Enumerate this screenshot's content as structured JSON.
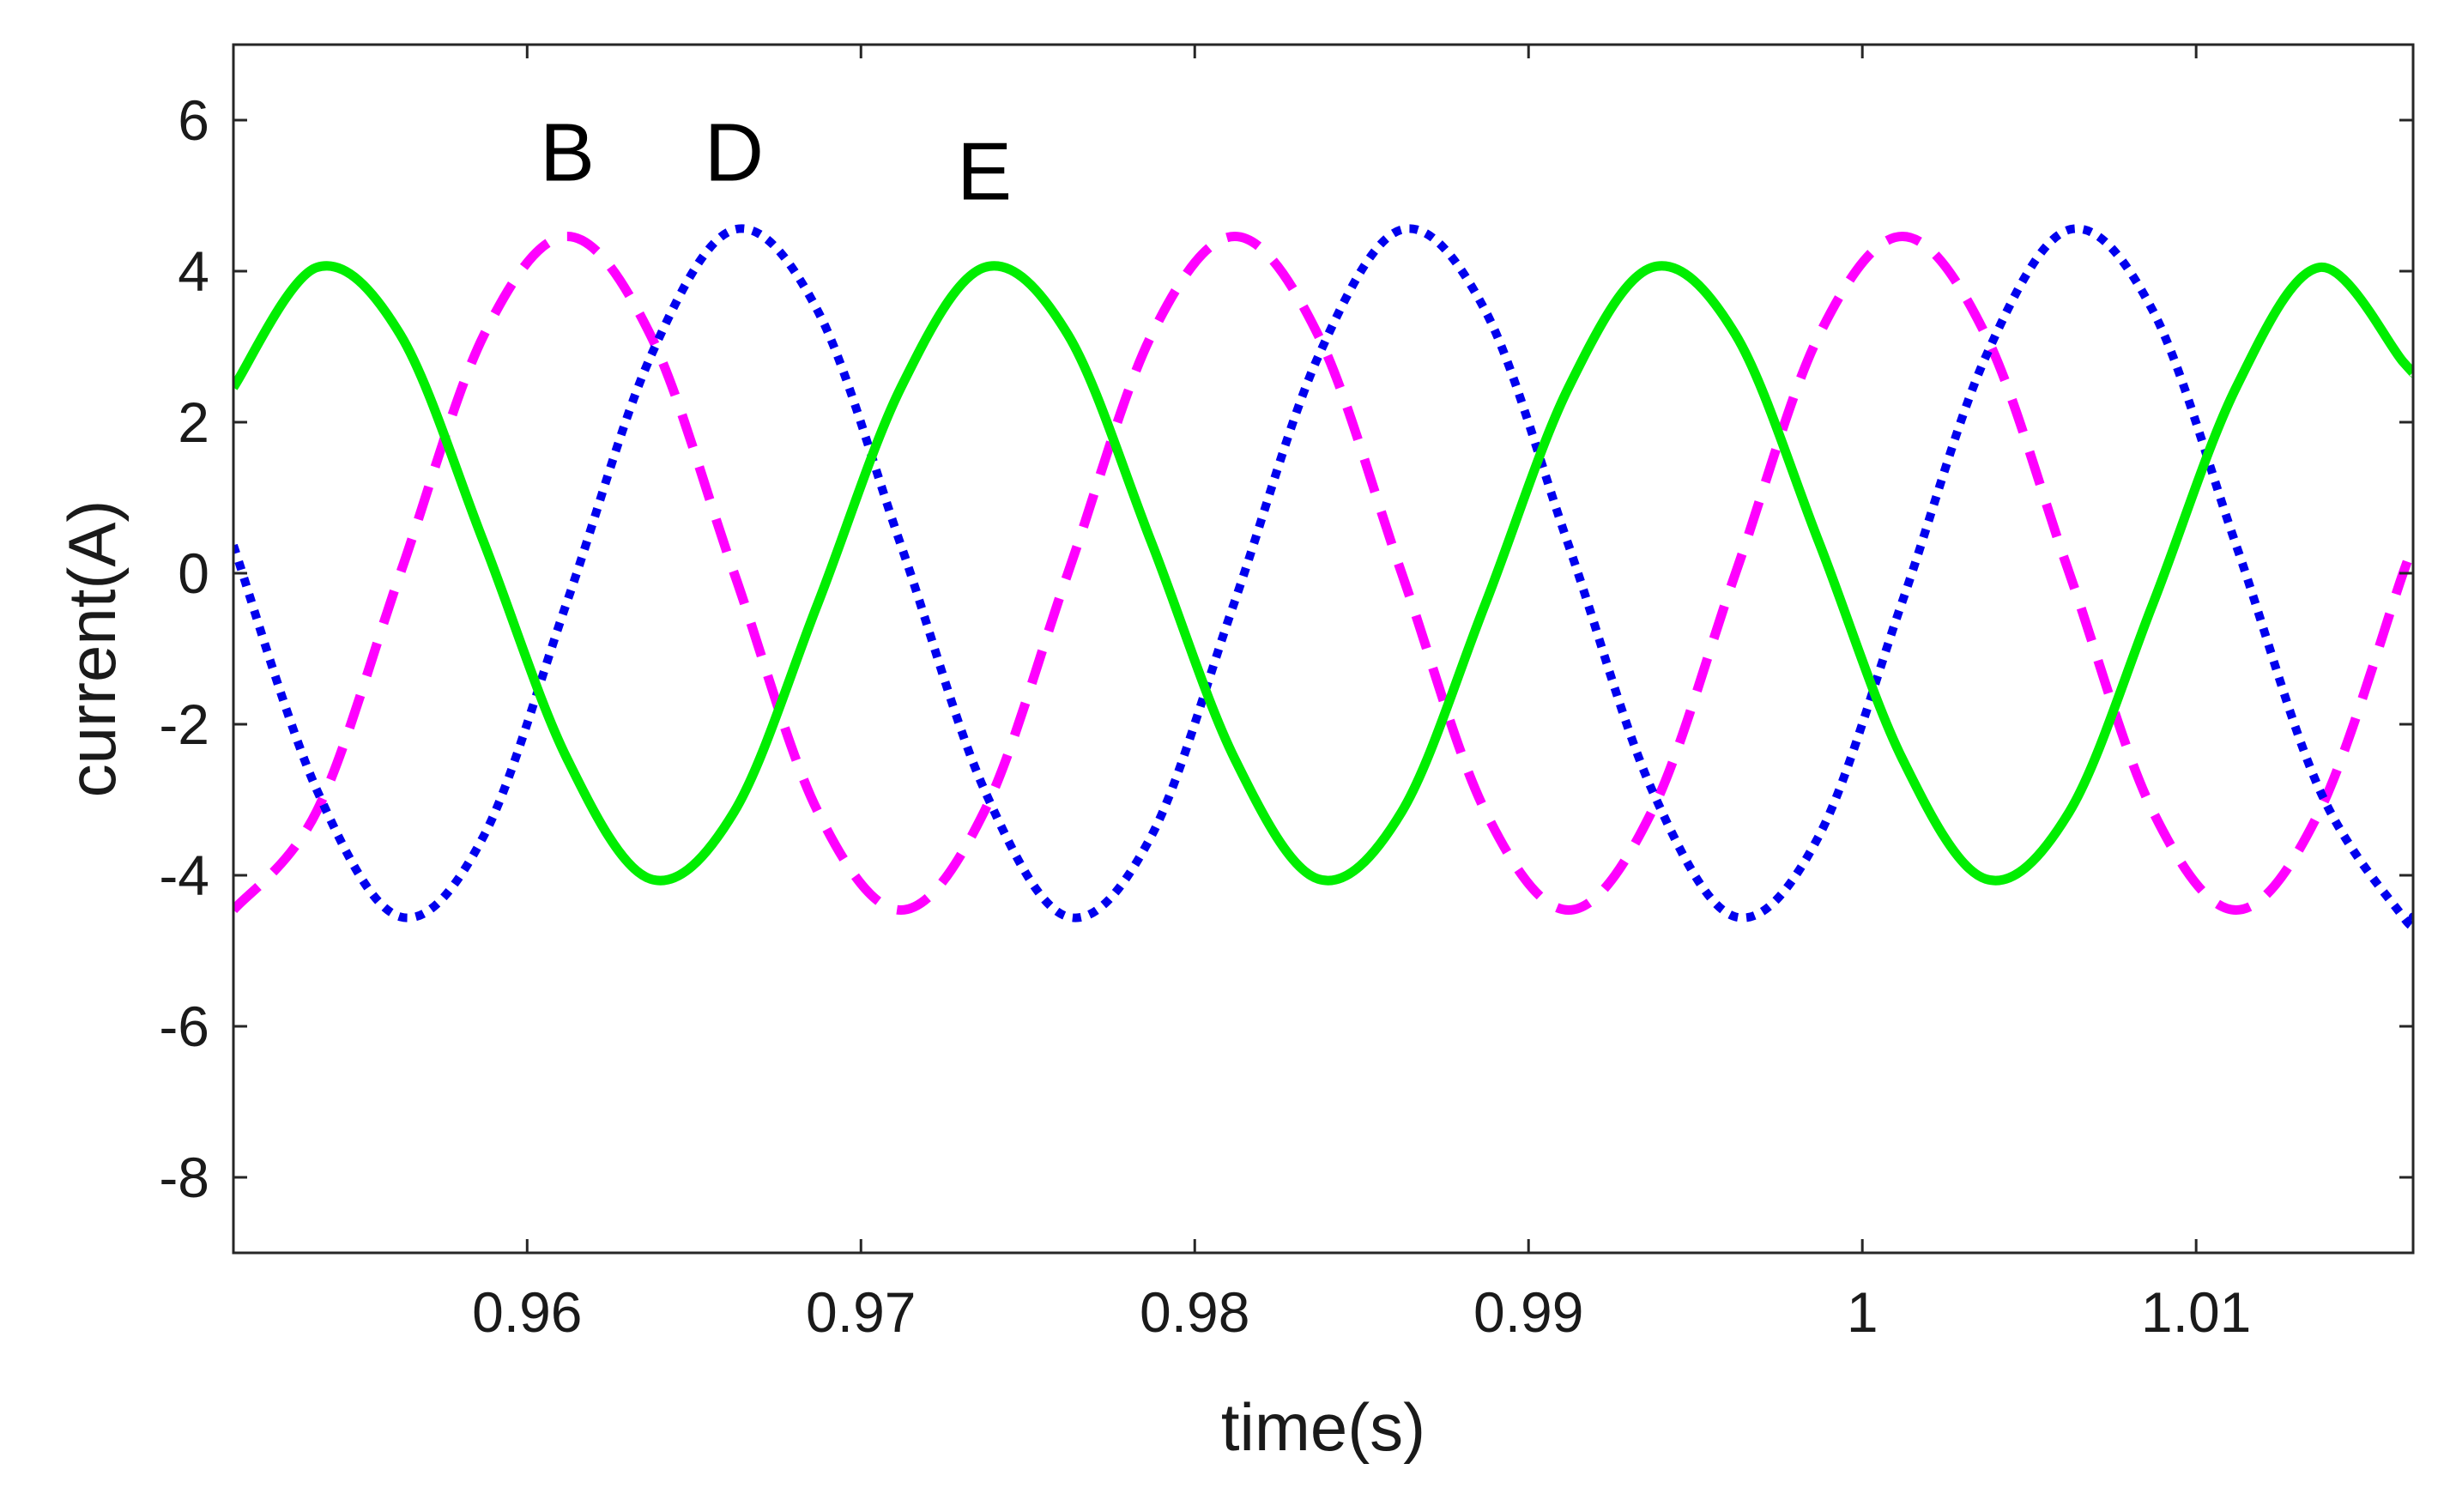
{
  "chart_data": {
    "type": "line",
    "title": "",
    "xlabel": "time(s)",
    "ylabel": "current(A)",
    "xlim": [
      0.9512,
      1.0165
    ],
    "ylim": [
      -9,
      7
    ],
    "grid": false,
    "xticks": [
      0.96,
      0.97,
      0.98,
      0.99,
      1,
      1.01
    ],
    "xtick_labels": [
      "0.96",
      "0.97",
      "0.98",
      "0.99",
      "1",
      "1.01"
    ],
    "yticks": [
      6,
      4,
      2,
      0,
      -2,
      -4,
      -6,
      -8
    ],
    "ytick_labels": [
      "6",
      "4",
      "2",
      "0",
      "-2",
      "-4",
      "-6",
      "-8"
    ],
    "x": [
      0.9512,
      0.9537,
      0.9562,
      0.9587,
      0.9612,
      0.9637,
      0.9662,
      0.9687,
      0.9712,
      0.9737,
      0.9762,
      0.9787,
      0.9812,
      0.9837,
      0.9862,
      0.9887,
      0.9912,
      0.9937,
      0.9962,
      0.9987,
      1.0012,
      1.0037,
      1.0062,
      1.0087,
      1.0112,
      1.0137,
      1.0162,
      1.0165
    ],
    "series": [
      {
        "name": "B",
        "color": "#ff00ff",
        "style": "dashed",
        "values": [
          -4.46,
          -3.15,
          0.0,
          3.15,
          4.46,
          3.15,
          0.0,
          -3.15,
          -4.46,
          -3.15,
          0.0,
          3.15,
          4.46,
          3.15,
          0.0,
          -3.15,
          -4.46,
          -3.15,
          0.0,
          3.15,
          4.46,
          3.15,
          0.0,
          -3.15,
          -4.46,
          -3.15,
          0.0,
          0.35
        ]
      },
      {
        "name": "D",
        "color": "#0000ee",
        "style": "dotted",
        "values": [
          0.37,
          -2.87,
          -4.55,
          -3.48,
          -0.37,
          2.87,
          4.55,
          3.48,
          0.37,
          -2.87,
          -4.55,
          -3.48,
          -0.37,
          2.87,
          4.55,
          3.48,
          0.37,
          -2.87,
          -4.55,
          -3.48,
          -0.37,
          2.87,
          4.55,
          3.48,
          0.37,
          -2.87,
          -4.55,
          -4.55
        ]
      },
      {
        "name": "E",
        "color": "#00ee00",
        "style": "solid",
        "values": [
          2.46,
          4.05,
          3.16,
          0.41,
          -2.46,
          -4.05,
          -3.16,
          -0.41,
          2.46,
          4.05,
          3.16,
          0.41,
          -2.46,
          -4.05,
          -3.16,
          -0.41,
          2.46,
          4.05,
          3.16,
          0.41,
          -2.46,
          -4.05,
          -3.16,
          -0.41,
          2.46,
          4.05,
          2.8,
          2.66
        ]
      }
    ],
    "annotations": [
      {
        "text": "B",
        "x": 0.9612,
        "y": 5.2
      },
      {
        "text": "D",
        "x": 0.9662,
        "y": 5.2
      },
      {
        "text": "E",
        "x": 0.9737,
        "y": 4.95
      }
    ]
  }
}
